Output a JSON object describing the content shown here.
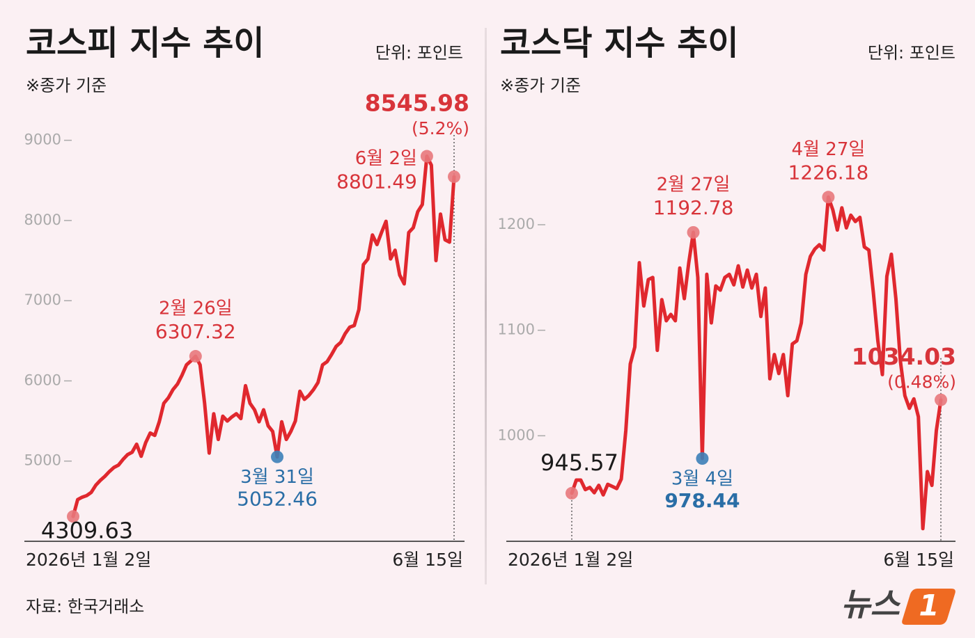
{
  "chart_data": [
    {
      "type": "line",
      "title": "코스피 지수 추이",
      "unit": "단위: 포인트",
      "note": "※종가 기준",
      "categories": [
        "2026년 1월 2일",
        null,
        null,
        null,
        null,
        null,
        null,
        null,
        null,
        null,
        null,
        null,
        null,
        null,
        null,
        null,
        null,
        null,
        null,
        null,
        null,
        null,
        null,
        null,
        null,
        null,
        null,
        "2월 26일",
        null,
        null,
        null,
        null,
        null,
        null,
        null,
        null,
        null,
        null,
        null,
        null,
        null,
        null,
        null,
        null,
        null,
        "3월 31일",
        null,
        null,
        null,
        null,
        null,
        null,
        null,
        null,
        null,
        null,
        null,
        null,
        null,
        null,
        null,
        null,
        null,
        null,
        null,
        null,
        null,
        null,
        null,
        null,
        null,
        null,
        null,
        null,
        null,
        null,
        null,
        null,
        "6월 2일",
        null,
        null,
        null,
        null,
        null,
        "6월 15일"
      ],
      "values": [
        4309.63,
        4520,
        4550,
        4570,
        4610,
        4700,
        4760,
        4810,
        4870,
        4920,
        4950,
        5020,
        5080,
        5110,
        5210,
        5060,
        5230,
        5350,
        5320,
        5490,
        5720,
        5790,
        5890,
        5960,
        6070,
        6200,
        6250,
        6307.32,
        6200,
        5720,
        5100,
        5590,
        5270,
        5560,
        5500,
        5550,
        5590,
        5530,
        5940,
        5720,
        5640,
        5490,
        5640,
        5440,
        5370,
        5052.46,
        5490,
        5270,
        5370,
        5500,
        5870,
        5770,
        5820,
        5890,
        5980,
        6200,
        6240,
        6330,
        6430,
        6480,
        6590,
        6670,
        6690,
        6890,
        7450,
        7520,
        7820,
        7700,
        7850,
        7990,
        7520,
        7630,
        7320,
        7210,
        7850,
        7910,
        8110,
        8200,
        8801.49,
        8690,
        7500,
        8080,
        7760,
        7730,
        8545.98
      ],
      "change_label": "(5.2%)",
      "color": "#e0282e",
      "marker_color": "#e8787c",
      "low_color": "#3c7fb8",
      "ylim": [
        4000,
        9500
      ],
      "yticks": [
        5000,
        6000,
        7000,
        8000,
        9000
      ]
    },
    {
      "type": "line",
      "title": "코스닥 지수 추이",
      "unit": "단위: 포인트",
      "note": "※종가 기준",
      "categories": [
        "2026년 1월 2일",
        null,
        null,
        null,
        null,
        null,
        null,
        null,
        null,
        null,
        null,
        null,
        null,
        null,
        null,
        null,
        null,
        null,
        null,
        null,
        null,
        null,
        null,
        null,
        null,
        null,
        null,
        "2월 27일",
        null,
        "3월 4일",
        null,
        null,
        null,
        null,
        null,
        null,
        null,
        null,
        null,
        null,
        null,
        null,
        null,
        null,
        null,
        null,
        null,
        null,
        null,
        null,
        null,
        null,
        null,
        null,
        null,
        null,
        null,
        "4월 27일",
        null,
        null,
        null,
        null,
        null,
        null,
        null,
        null,
        null,
        null,
        null,
        null,
        null,
        null,
        null,
        null,
        null,
        null,
        null,
        null,
        null,
        null,
        null,
        null,
        "6월 15일"
      ],
      "values": [
        945.57,
        958,
        958,
        949,
        951,
        946,
        953,
        944,
        954,
        952,
        950,
        959,
        1005,
        1068,
        1084,
        1164,
        1123,
        1148,
        1150,
        1081,
        1129,
        1109,
        1115,
        1109,
        1159,
        1130,
        1164,
        1192.78,
        1150,
        978.44,
        1153,
        1107,
        1142,
        1138,
        1150,
        1153,
        1143,
        1161,
        1141,
        1157,
        1140,
        1153,
        1113,
        1140,
        1054,
        1077,
        1059,
        1077,
        1038,
        1087,
        1090,
        1107,
        1153,
        1170,
        1177,
        1181,
        1176,
        1226.18,
        1214,
        1195,
        1216,
        1197,
        1209,
        1203,
        1207,
        1179,
        1176,
        1136,
        1090,
        1058,
        1151,
        1172,
        1130,
        1071,
        1038,
        1026,
        1035,
        1018,
        912,
        966,
        953,
        1005,
        1034.03
      ],
      "change_label": "(0.48%)",
      "color": "#e0282e",
      "marker_color": "#e8787c",
      "low_color": "#3c7fb8",
      "ylim": [
        900,
        1320
      ],
      "yticks": [
        1000,
        1100,
        1200
      ]
    }
  ],
  "source": "자료: 한국거래소",
  "logo": {
    "text": "뉴스",
    "mark": "1"
  }
}
